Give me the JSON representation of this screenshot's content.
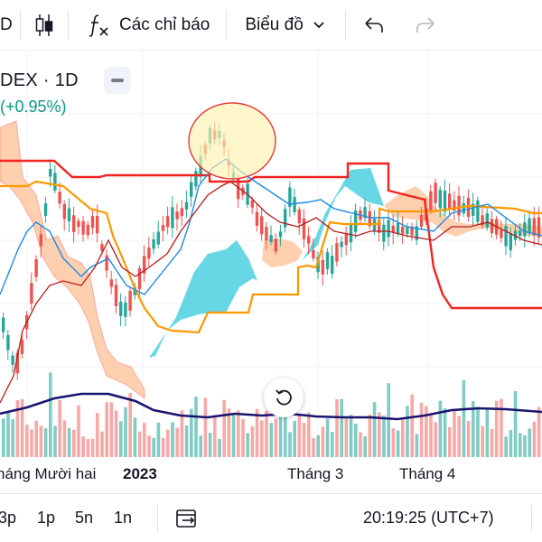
{
  "toolbar": {
    "symbol_tail": "D",
    "indicators_label": "Các chỉ báo",
    "chart_type_label": "Biểu đồ",
    "icons": [
      "candles-icon",
      "function-icon",
      "chevron-down-icon",
      "undo-icon",
      "redo-icon"
    ]
  },
  "legend": {
    "title": "DEX · 1D",
    "change": "(+0.95%)"
  },
  "time_axis": {
    "labels": [
      "háng Mười hai",
      "2023",
      "Tháng 3",
      "Tháng 4"
    ]
  },
  "bottom_bar": {
    "ranges": [
      "3p",
      "1p",
      "5n",
      "1n"
    ],
    "clock": "20:19:25 (UTC+7)"
  },
  "colors": {
    "up": "#26a69a",
    "down": "#ef5350",
    "kijun": "#f0251f",
    "tenkan": "#2962ff",
    "lagging": "#b71c1c",
    "span_b": "#ff9800",
    "cloud_bull": "#4dd0e1",
    "cloud_bear": "#ffb07c",
    "volume_ma": "#1a1470",
    "highlight": "#fff3b0"
  },
  "chart_data": {
    "type": "candlestick",
    "title": "DEX · 1D",
    "x_labels": [
      "háng Mười hai",
      "2023",
      "Tháng 3",
      "Tháng 4"
    ],
    "overlays": [
      "ichimoku",
      "volume",
      "volume-ma"
    ],
    "change_percent": 0.95,
    "annotation": "circle highlighting the local high"
  }
}
